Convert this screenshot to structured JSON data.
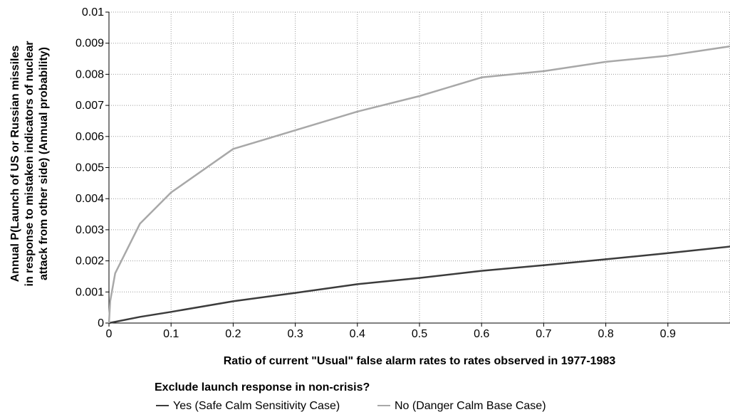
{
  "chart_data": {
    "type": "line",
    "xlabel": "Ratio of current \"Usual\" false alarm rates to rates observed in 1977-1983",
    "ylabel_lines": [
      "Annual P(Launch of US or Russian missiles",
      "in response to mistaken indicators of nuclear",
      "attack from other side) (Annual probability)"
    ],
    "xlim": [
      0,
      1
    ],
    "ylim": [
      0,
      0.01
    ],
    "x_ticks": [
      "0",
      "0.1",
      "0.2",
      "0.3",
      "0.4",
      "0.5",
      "0.6",
      "0.7",
      "0.8",
      "0.9"
    ],
    "y_ticks": [
      "0",
      "0.001",
      "0.002",
      "0.003",
      "0.004",
      "0.005",
      "0.006",
      "0.007",
      "0.008",
      "0.009",
      "0.01"
    ],
    "grid": true,
    "legend_title": "Exclude launch response in non-crisis?",
    "legend_placement": "bottom",
    "series": [
      {
        "name": "Yes (Safe Calm Sensitivity Case)",
        "color": "#3c3c3c",
        "points": [
          [
            0,
            0
          ],
          [
            0.05,
            0.0002
          ],
          [
            0.1,
            0.00036
          ],
          [
            0.2,
            0.0007
          ],
          [
            0.3,
            0.00097
          ],
          [
            0.4,
            0.00125
          ],
          [
            0.5,
            0.00145
          ],
          [
            0.6,
            0.00168
          ],
          [
            0.7,
            0.00186
          ],
          [
            0.8,
            0.00205
          ],
          [
            0.9,
            0.00225
          ],
          [
            1.0,
            0.00246
          ]
        ]
      },
      {
        "name": "No (Danger Calm Base Case)",
        "color": "#a8a8a8",
        "points": [
          [
            0,
            0
          ],
          [
            0.002,
            0.0007
          ],
          [
            0.01,
            0.0016
          ],
          [
            0.05,
            0.0032
          ],
          [
            0.1,
            0.0042
          ],
          [
            0.2,
            0.0056
          ],
          [
            0.3,
            0.0062
          ],
          [
            0.4,
            0.0068
          ],
          [
            0.5,
            0.0073
          ],
          [
            0.6,
            0.0079
          ],
          [
            0.7,
            0.0081
          ],
          [
            0.8,
            0.0084
          ],
          [
            0.9,
            0.0086
          ],
          [
            1.0,
            0.0089
          ]
        ]
      }
    ]
  }
}
